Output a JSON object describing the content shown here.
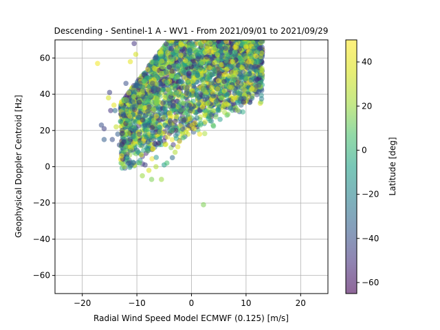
{
  "chart_data": {
    "type": "scatter",
    "title": "Descending - Sentinel-1 A - WV1 - From 2021/09/01 to 2021/09/29",
    "xlabel": "Radial Wind Speed Model ECMWF (0.125) [m/s]",
    "ylabel": "Geophysical Doppler Centroid [Hz]",
    "xlim": [
      -25,
      25
    ],
    "ylim": [
      -70,
      70
    ],
    "xticks": [
      -20,
      -10,
      0,
      10,
      20
    ],
    "yticks": [
      -60,
      -40,
      -20,
      0,
      20,
      40,
      60
    ],
    "xtick_labels": [
      "−20",
      "−10",
      "0",
      "10",
      "20"
    ],
    "ytick_labels": [
      "−60",
      "−40",
      "−20",
      "0",
      "20",
      "40",
      "60"
    ],
    "grid": true,
    "colormap": "viridis",
    "alpha": 0.5,
    "colorbar": {
      "label": "Latitude [deg]",
      "range": [
        -65,
        50
      ],
      "ticks": [
        -60,
        -40,
        -20,
        0,
        20,
        40
      ],
      "tick_labels": [
        "−60",
        "−40",
        "−20",
        "0",
        "20",
        "40"
      ]
    },
    "points": [
      {
        "x": -17.2,
        "y": 57,
        "c": 45
      },
      {
        "x": -16.5,
        "y": 23,
        "c": -40
      },
      {
        "x": -16.0,
        "y": 21,
        "c": -45
      },
      {
        "x": -16.0,
        "y": 15,
        "c": -35
      },
      {
        "x": -15.2,
        "y": 38,
        "c": 35
      },
      {
        "x": -15.0,
        "y": 41,
        "c": -45
      },
      {
        "x": -14.8,
        "y": 31,
        "c": -50
      },
      {
        "x": -14.5,
        "y": 15,
        "c": -40
      },
      {
        "x": -14.2,
        "y": 34,
        "c": 40
      },
      {
        "x": -14.0,
        "y": 31,
        "c": -30
      },
      {
        "x": -13.8,
        "y": 22,
        "c": 30
      },
      {
        "x": -13.5,
        "y": 18,
        "c": -35
      },
      {
        "x": -13.2,
        "y": 12,
        "c": -40
      },
      {
        "x": -13.0,
        "y": 25,
        "c": -10
      },
      {
        "x": -12.8,
        "y": 6,
        "c": 45
      },
      {
        "x": -12.5,
        "y": 29,
        "c": -30
      },
      {
        "x": -12.3,
        "y": 0,
        "c": 20
      },
      {
        "x": -12.0,
        "y": 46,
        "c": -40
      },
      {
        "x": -11.8,
        "y": 5,
        "c": -20
      },
      {
        "x": -11.5,
        "y": 2,
        "c": -45
      },
      {
        "x": -11.2,
        "y": 58,
        "c": 40
      },
      {
        "x": -11.0,
        "y": 1,
        "c": -30
      },
      {
        "x": -10.5,
        "y": 68,
        "c": -50
      },
      {
        "x": -10.2,
        "y": 62,
        "c": 35
      },
      {
        "x": -9.5,
        "y": 2,
        "c": 10
      },
      {
        "x": -9.0,
        "y": -5,
        "c": 20
      },
      {
        "x": -8.5,
        "y": 1,
        "c": -45
      },
      {
        "x": -7.8,
        "y": -2,
        "c": 35
      },
      {
        "x": -7.3,
        "y": -7,
        "c": 15
      },
      {
        "x": -6.5,
        "y": 0,
        "c": 25
      },
      {
        "x": -5.5,
        "y": -7,
        "c": 20
      },
      {
        "x": -5.0,
        "y": 1,
        "c": -10
      },
      {
        "x": -4.5,
        "y": 2,
        "c": 5
      },
      {
        "x": -3.5,
        "y": 5,
        "c": -30
      },
      {
        "x": -3.0,
        "y": 8,
        "c": 25
      },
      {
        "x": -2.5,
        "y": 11,
        "c": 40
      },
      {
        "x": -1.5,
        "y": 16,
        "c": 5
      },
      {
        "x": -1.0,
        "y": 19,
        "c": 30
      },
      {
        "x": 0.5,
        "y": 21,
        "c": 45
      },
      {
        "x": 1.5,
        "y": 18,
        "c": 45
      },
      {
        "x": 2.2,
        "y": -21,
        "c": 15
      },
      {
        "x": 1.0,
        "y": 27,
        "c": -20
      },
      {
        "x": 2.0,
        "y": 33,
        "c": 40
      },
      {
        "x": 2.5,
        "y": 37,
        "c": -40
      },
      {
        "x": 3.0,
        "y": 35,
        "c": 30
      },
      {
        "x": 4.0,
        "y": 39,
        "c": -35
      },
      {
        "x": 4.5,
        "y": 36,
        "c": -30
      },
      {
        "x": 4.8,
        "y": 43,
        "c": 35
      },
      {
        "x": 5.5,
        "y": 38,
        "c": 15
      },
      {
        "x": 6.0,
        "y": 47,
        "c": -50
      },
      {
        "x": 6.2,
        "y": 51,
        "c": 40
      },
      {
        "x": 7.0,
        "y": 44,
        "c": 30
      },
      {
        "x": 7.5,
        "y": 52,
        "c": 30
      },
      {
        "x": 7.5,
        "y": 58,
        "c": 45
      },
      {
        "x": 8.5,
        "y": 44,
        "c": -40
      },
      {
        "x": 8.5,
        "y": 56,
        "c": -45
      },
      {
        "x": 9.0,
        "y": 60,
        "c": 5
      },
      {
        "x": 9.5,
        "y": 62,
        "c": -25
      },
      {
        "x": 10.0,
        "y": 66,
        "c": 40
      },
      {
        "x": 10.5,
        "y": 58,
        "c": 45
      },
      {
        "x": 11.0,
        "y": 55,
        "c": -40
      },
      {
        "x": 11.8,
        "y": 61,
        "c": 45
      },
      {
        "x": 12.0,
        "y": 70,
        "c": -40
      },
      {
        "x": 8.0,
        "y": 66,
        "c": 45
      },
      {
        "x": 6.5,
        "y": 62,
        "c": 10
      }
    ]
  }
}
